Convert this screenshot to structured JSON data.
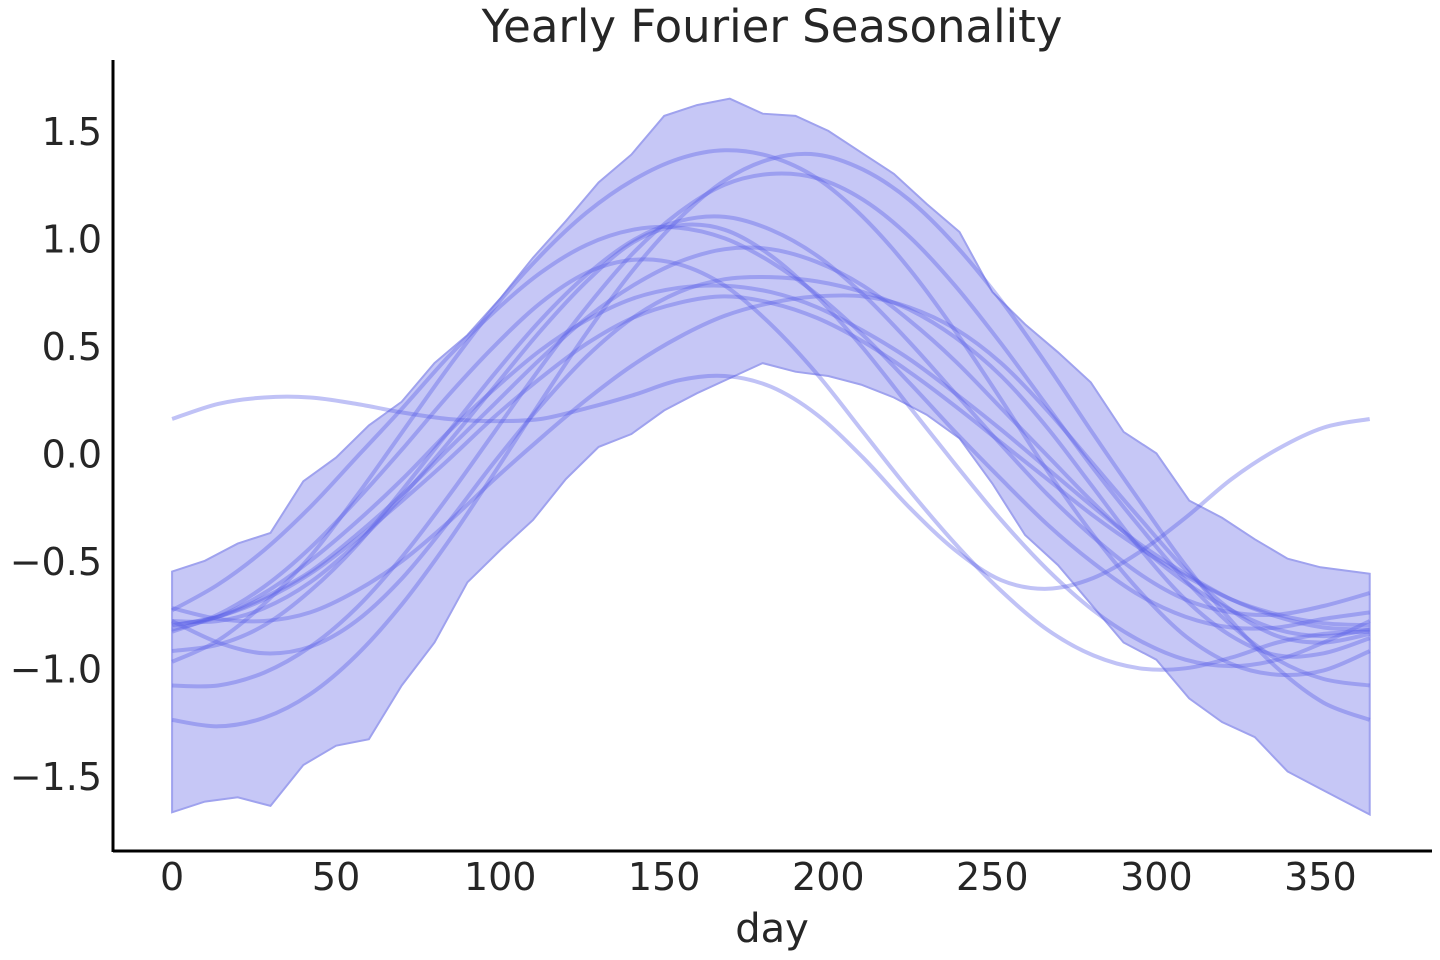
{
  "chart_data": {
    "type": "line",
    "title": "Yearly Fourier Seasonality",
    "xlabel": "day",
    "ylabel": "",
    "xlim": [
      -18,
      384
    ],
    "ylim": [
      -1.85,
      1.83
    ],
    "x_ticks": [
      0,
      50,
      100,
      150,
      200,
      250,
      300,
      350
    ],
    "y_ticks": [
      -1.5,
      -1.0,
      -0.5,
      0.0,
      0.5,
      1.0,
      1.5
    ],
    "x_tick_labels": [
      "0",
      "50",
      "100",
      "150",
      "200",
      "250",
      "300",
      "350"
    ],
    "y_tick_labels": [
      "−1.5",
      "−1.0",
      "−0.5",
      "0.0",
      "0.5",
      "1.0",
      "1.5"
    ],
    "grid": false,
    "colors": {
      "band": "#c6c7f6",
      "band_edge": "#9fa2ee",
      "line": "#5a5fe8",
      "axis": "#000000"
    },
    "band": {
      "x": [
        0,
        10,
        20,
        30,
        40,
        50,
        60,
        70,
        80,
        90,
        100,
        110,
        120,
        130,
        140,
        150,
        160,
        170,
        180,
        190,
        200,
        210,
        220,
        230,
        240,
        250,
        260,
        270,
        280,
        290,
        300,
        310,
        320,
        330,
        340,
        350,
        365
      ],
      "lower": [
        -1.67,
        -1.62,
        -1.6,
        -1.64,
        -1.45,
        -1.36,
        -1.33,
        -1.08,
        -0.88,
        -0.6,
        -0.45,
        -0.31,
        -0.12,
        0.03,
        0.09,
        0.2,
        0.28,
        0.35,
        0.42,
        0.38,
        0.36,
        0.32,
        0.26,
        0.18,
        0.07,
        -0.14,
        -0.38,
        -0.52,
        -0.7,
        -0.88,
        -0.96,
        -1.14,
        -1.25,
        -1.32,
        -1.48,
        -1.56,
        -1.68
      ],
      "upper": [
        -0.55,
        -0.5,
        -0.42,
        -0.37,
        -0.13,
        -0.02,
        0.13,
        0.24,
        0.42,
        0.55,
        0.72,
        0.91,
        1.08,
        1.26,
        1.39,
        1.57,
        1.62,
        1.65,
        1.58,
        1.57,
        1.5,
        1.4,
        1.3,
        1.16,
        1.03,
        0.75,
        0.6,
        0.47,
        0.33,
        0.1,
        0.0,
        -0.22,
        -0.3,
        -0.4,
        -0.49,
        -0.53,
        -0.56
      ]
    },
    "series": [
      {
        "values": [
          -0.73,
          -0.61,
          -0.45,
          -0.25,
          -0.02,
          0.21,
          0.45,
          0.66,
          0.84,
          0.97,
          1.04,
          1.05,
          1.0,
          0.89,
          0.74,
          0.55,
          0.33,
          0.1,
          -0.12,
          -0.33,
          -0.51,
          -0.66,
          -0.76,
          -0.81,
          -0.81,
          -0.77,
          -0.74
        ]
      },
      {
        "values": [
          -0.92,
          -0.89,
          -0.8,
          -0.64,
          -0.43,
          -0.17,
          0.1,
          0.37,
          0.62,
          0.83,
          0.99,
          1.08,
          1.1,
          1.04,
          0.92,
          0.74,
          0.52,
          0.28,
          0.04,
          -0.19,
          -0.39,
          -0.56,
          -0.68,
          -0.74,
          -0.75,
          -0.71,
          -0.65
        ]
      },
      {
        "values": [
          -1.08,
          -1.08,
          -1.02,
          -0.9,
          -0.72,
          -0.48,
          -0.2,
          0.1,
          0.4,
          0.68,
          0.93,
          1.12,
          1.25,
          1.3,
          1.28,
          1.18,
          1.01,
          0.78,
          0.51,
          0.22,
          -0.07,
          -0.34,
          -0.59,
          -0.8,
          -0.96,
          -1.05,
          -1.08
        ]
      },
      {
        "values": [
          -1.24,
          -1.27,
          -1.23,
          -1.12,
          -0.94,
          -0.7,
          -0.41,
          -0.09,
          0.24,
          0.56,
          0.85,
          1.09,
          1.27,
          1.37,
          1.39,
          1.32,
          1.18,
          0.97,
          0.71,
          0.41,
          0.09,
          -0.22,
          -0.52,
          -0.78,
          -1.0,
          -1.16,
          -1.24
        ]
      },
      {
        "values": [
          -0.78,
          -0.78,
          -0.72,
          -0.6,
          -0.42,
          -0.2,
          0.05,
          0.31,
          0.57,
          0.8,
          0.98,
          1.06,
          1.04,
          0.92,
          0.73,
          0.49,
          0.22,
          -0.05,
          -0.31,
          -0.54,
          -0.73,
          -0.87,
          -0.96,
          -0.99,
          -0.96,
          -0.88,
          -0.78
        ]
      },
      {
        "values": [
          -0.97,
          -0.87,
          -0.7,
          -0.48,
          -0.2,
          0.1,
          0.4,
          0.68,
          0.92,
          1.12,
          1.27,
          1.37,
          1.41,
          1.38,
          1.28,
          1.1,
          0.86,
          0.57,
          0.25,
          -0.08,
          -0.38,
          -0.64,
          -0.85,
          -0.98,
          -1.03,
          -1.01,
          -0.92
        ]
      },
      {
        "values": [
          -0.82,
          -0.76,
          -0.65,
          -0.5,
          -0.32,
          -0.12,
          0.1,
          0.3,
          0.48,
          0.62,
          0.72,
          0.77,
          0.78,
          0.75,
          0.68,
          0.57,
          0.44,
          0.28,
          0.11,
          -0.07,
          -0.25,
          -0.42,
          -0.56,
          -0.68,
          -0.76,
          -0.81,
          -0.82
        ]
      },
      {
        "values": [
          -0.8,
          -0.76,
          -0.68,
          -0.56,
          -0.4,
          -0.22,
          -0.03,
          0.17,
          0.35,
          0.51,
          0.63,
          0.7,
          0.73,
          0.7,
          0.63,
          0.52,
          0.38,
          0.22,
          0.05,
          -0.12,
          -0.29,
          -0.44,
          -0.57,
          -0.68,
          -0.75,
          -0.79,
          -0.8
        ]
      },
      {
        "values": [
          -0.8,
          -0.76,
          -0.67,
          -0.55,
          -0.38,
          -0.19,
          0.02,
          0.23,
          0.44,
          0.63,
          0.78,
          0.89,
          0.95,
          0.95,
          0.89,
          0.78,
          0.62,
          0.43,
          0.21,
          -0.01,
          -0.23,
          -0.43,
          -0.6,
          -0.73,
          -0.82,
          -0.85,
          -0.82
        ]
      },
      {
        "values": [
          -0.83,
          -0.75,
          -0.62,
          -0.44,
          -0.22,
          0.02,
          0.27,
          0.5,
          0.7,
          0.84,
          0.9,
          0.88,
          0.78,
          0.6,
          0.37,
          0.1,
          -0.17,
          -0.42,
          -0.64,
          -0.82,
          -0.94,
          -1.0,
          -1.0,
          -0.95,
          -0.88,
          -0.84,
          -0.83
        ]
      },
      {
        "values": [
          -0.72,
          -0.77,
          -0.78,
          -0.74,
          -0.64,
          -0.5,
          -0.32,
          -0.12,
          0.07,
          0.25,
          0.41,
          0.54,
          0.64,
          0.7,
          0.73,
          0.73,
          0.68,
          0.58,
          0.42,
          0.2,
          -0.05,
          -0.3,
          -0.54,
          -0.73,
          -0.85,
          -0.88,
          -0.84
        ]
      },
      {
        "values": [
          -0.78,
          -0.88,
          -0.93,
          -0.9,
          -0.78,
          -0.58,
          -0.32,
          -0.04,
          0.22,
          0.45,
          0.63,
          0.75,
          0.81,
          0.82,
          0.8,
          0.75,
          0.67,
          0.54,
          0.36,
          0.12,
          -0.16,
          -0.44,
          -0.68,
          -0.85,
          -0.94,
          -0.93,
          -0.86
        ]
      },
      {
        "values": [
          0.16,
          0.23,
          0.26,
          0.26,
          0.23,
          0.19,
          0.16,
          0.15,
          0.16,
          0.21,
          0.27,
          0.34,
          0.36,
          0.31,
          0.18,
          -0.02,
          -0.25,
          -0.45,
          -0.59,
          -0.63,
          -0.58,
          -0.46,
          -0.3,
          -0.12,
          0.02,
          0.12,
          0.16
        ]
      }
    ]
  }
}
